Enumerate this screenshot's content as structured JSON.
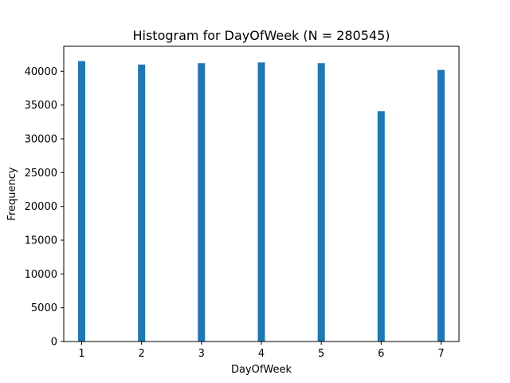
{
  "chart_data": {
    "type": "bar",
    "title": "Histogram for DayOfWeek (N = 280545)",
    "xlabel": "DayOfWeek",
    "ylabel": "Frequency",
    "x": [
      1,
      2,
      3,
      4,
      5,
      6,
      7
    ],
    "values": [
      41500,
      41000,
      41200,
      41300,
      41200,
      34100,
      40200
    ],
    "xlim": [
      0.7,
      7.3
    ],
    "ylim": [
      0,
      43700
    ],
    "xticks": [
      1,
      2,
      3,
      4,
      5,
      6,
      7
    ],
    "yticks": [
      0,
      5000,
      10000,
      15000,
      20000,
      25000,
      30000,
      35000,
      40000
    ],
    "bar_color": "#1f77b4",
    "grid": false,
    "legend": false
  }
}
